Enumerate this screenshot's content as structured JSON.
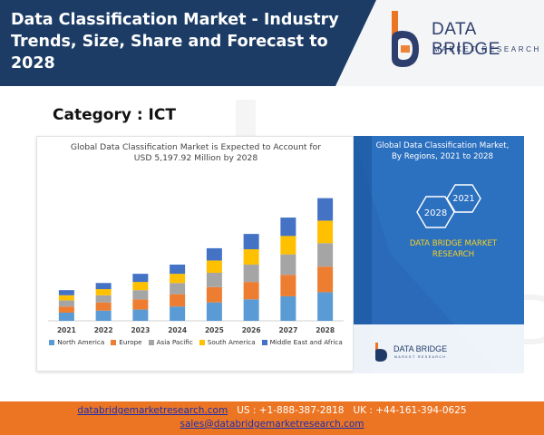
{
  "header": {
    "title": "Data Classification Market - Industry Trends, Size, Share and Forecast to 2028",
    "logo_name": "DATA BRIDGE",
    "logo_sub": "MARKET RESEARCH"
  },
  "category": "Category : ICT",
  "chart_card": {
    "title_line1": "Global Data Classification Market is Expected to Account for",
    "title_line2": "USD 5,197.92 Million by 2028"
  },
  "chart_data": {
    "type": "bar",
    "stacked": true,
    "categories": [
      "2021",
      "2022",
      "2023",
      "2024",
      "2025",
      "2026",
      "2027",
      "2028"
    ],
    "series": [
      {
        "name": "North America",
        "color": "#5b9bd5",
        "values": [
          8,
          10,
          11,
          14,
          18,
          21,
          24,
          28
        ]
      },
      {
        "name": "Europe",
        "color": "#ed7d31",
        "values": [
          6,
          8,
          10,
          12,
          15,
          17,
          21,
          25
        ]
      },
      {
        "name": "Asia Pacific",
        "color": "#a5a5a5",
        "values": [
          6,
          7,
          9,
          11,
          14,
          17,
          20,
          23
        ]
      },
      {
        "name": "South America",
        "color": "#ffc000",
        "values": [
          5,
          6,
          8,
          9,
          12,
          15,
          18,
          22
        ]
      },
      {
        "name": "Middle East and Africa",
        "color": "#4472c4",
        "values": [
          5,
          6,
          8,
          9,
          12,
          15,
          18,
          22
        ]
      }
    ],
    "ylim": [
      0,
      125
    ],
    "grid": false,
    "legend": "bottom"
  },
  "right_panel": {
    "title_line1": "Global Data Classification Market,",
    "title_line2": "By Regions, 2021 to 2028",
    "hex_left": "2028",
    "hex_right": "2021",
    "brand_line1": "DATA BRIDGE MARKET",
    "brand_line2": "RESEARCH",
    "logo_name": "DATA BRIDGE",
    "logo_sub": "MARKET RESEARCH"
  },
  "footer": {
    "website": "databridgemarketresearch.com",
    "us_phone": "US : +1-888-387-2818",
    "uk_phone": "UK : +44-161-394-0625",
    "email": "sales@databridgemarketresearch.com"
  },
  "colors": {
    "header_dark": "#1c3c66",
    "footer_orange": "#ec7523",
    "panel_blue": "#2a6ab8",
    "brand_yellow": "#f7d21e"
  }
}
